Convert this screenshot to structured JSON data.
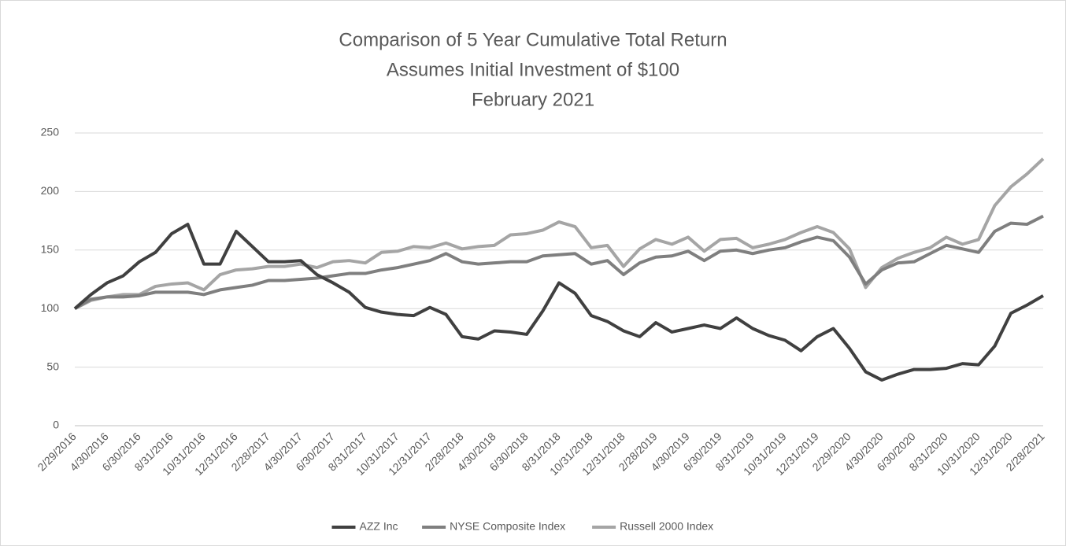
{
  "chart_data": {
    "type": "line",
    "title": "Comparison of 5 Year Cumulative Total Return",
    "subtitle": [
      "Assumes Initial Investment of $100",
      "February 2021"
    ],
    "categories": [
      "2/29/2016",
      null,
      "4/30/2016",
      null,
      "6/30/2016",
      null,
      "8/31/2016",
      null,
      "10/31/2016",
      null,
      "12/31/2016",
      null,
      "2/28/2017",
      null,
      "4/30/2017",
      null,
      "6/30/2017",
      null,
      "8/31/2017",
      null,
      "10/31/2017",
      null,
      "12/31/2017",
      null,
      "2/28/2018",
      null,
      "4/30/2018",
      null,
      "6/30/2018",
      null,
      "8/31/2018",
      null,
      "10/31/2018",
      null,
      "12/31/2018",
      null,
      "2/28/2019",
      null,
      "4/30/2019",
      null,
      "6/30/2019",
      null,
      "8/31/2019",
      null,
      "10/31/2019",
      null,
      "12/31/2019",
      null,
      "2/29/2020",
      null,
      "4/30/2020",
      null,
      "6/30/2020",
      null,
      "8/31/2020",
      null,
      "10/31/2020",
      null,
      "12/31/2020",
      null,
      "2/28/2021"
    ],
    "series": [
      {
        "name": "AZZ Inc",
        "color": "#404040",
        "values": [
          100,
          112,
          122,
          128,
          140,
          148,
          164,
          172,
          138,
          138,
          166,
          153,
          140,
          140,
          141,
          129,
          122,
          114,
          101,
          97,
          95,
          94,
          101,
          95,
          76,
          74,
          81,
          80,
          78,
          98,
          122,
          113,
          94,
          89,
          81,
          76,
          88,
          80,
          83,
          86,
          83,
          92,
          83,
          77,
          73,
          64,
          76,
          83,
          66,
          46,
          39,
          44,
          48,
          48,
          49,
          53,
          52,
          68,
          96,
          103,
          111
        ]
      },
      {
        "name": "NYSE Composite Index",
        "color": "#7f7f7f",
        "values": [
          100,
          108,
          110,
          110,
          111,
          114,
          114,
          114,
          112,
          116,
          118,
          120,
          124,
          124,
          125,
          126,
          128,
          130,
          130,
          133,
          135,
          138,
          141,
          147,
          140,
          138,
          139,
          140,
          140,
          145,
          146,
          147,
          138,
          141,
          129,
          139,
          144,
          145,
          149,
          141,
          149,
          150,
          147,
          150,
          152,
          157,
          161,
          158,
          144,
          121,
          133,
          139,
          140,
          147,
          154,
          151,
          148,
          166,
          173,
          172,
          179
        ]
      },
      {
        "name": "Russell 2000 Index",
        "color": "#a5a5a5",
        "values": [
          100,
          107,
          110,
          112,
          112,
          119,
          121,
          122,
          116,
          129,
          133,
          134,
          136,
          136,
          138,
          135,
          140,
          141,
          139,
          148,
          149,
          153,
          152,
          156,
          151,
          153,
          154,
          163,
          164,
          167,
          174,
          170,
          152,
          154,
          136,
          151,
          159,
          155,
          161,
          149,
          159,
          160,
          152,
          155,
          159,
          165,
          170,
          165,
          151,
          118,
          135,
          143,
          148,
          152,
          161,
          155,
          159,
          188,
          204,
          215,
          228
        ]
      }
    ],
    "ylim": [
      0,
      250
    ],
    "yticks": [
      0,
      50,
      100,
      150,
      200,
      250
    ],
    "grid": true,
    "legend": "bottom"
  }
}
